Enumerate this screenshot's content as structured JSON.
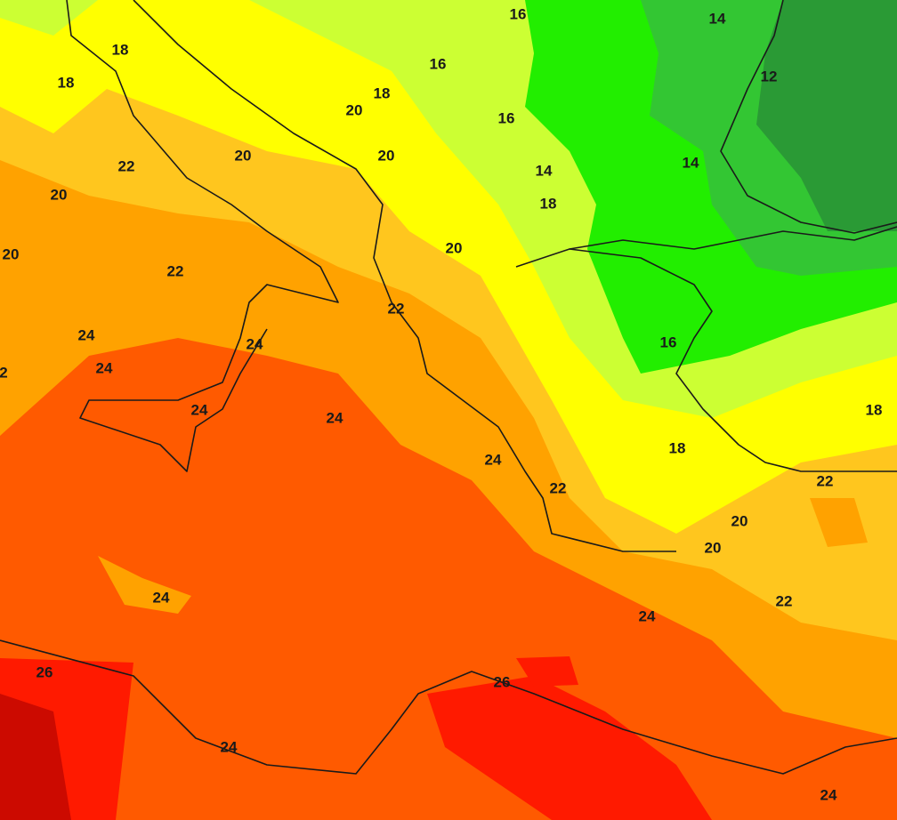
{
  "contour_labels": [
    16,
    14,
    18,
    16,
    12,
    18,
    18,
    20,
    16,
    20,
    20,
    14,
    22,
    14,
    20,
    18,
    20,
    20,
    22,
    22,
    24,
    24,
    16,
    24,
    2,
    24,
    24,
    18,
    18,
    24,
    22,
    22,
    20,
    20,
    24,
    22,
    24,
    26,
    26,
    24,
    24
  ]
}
